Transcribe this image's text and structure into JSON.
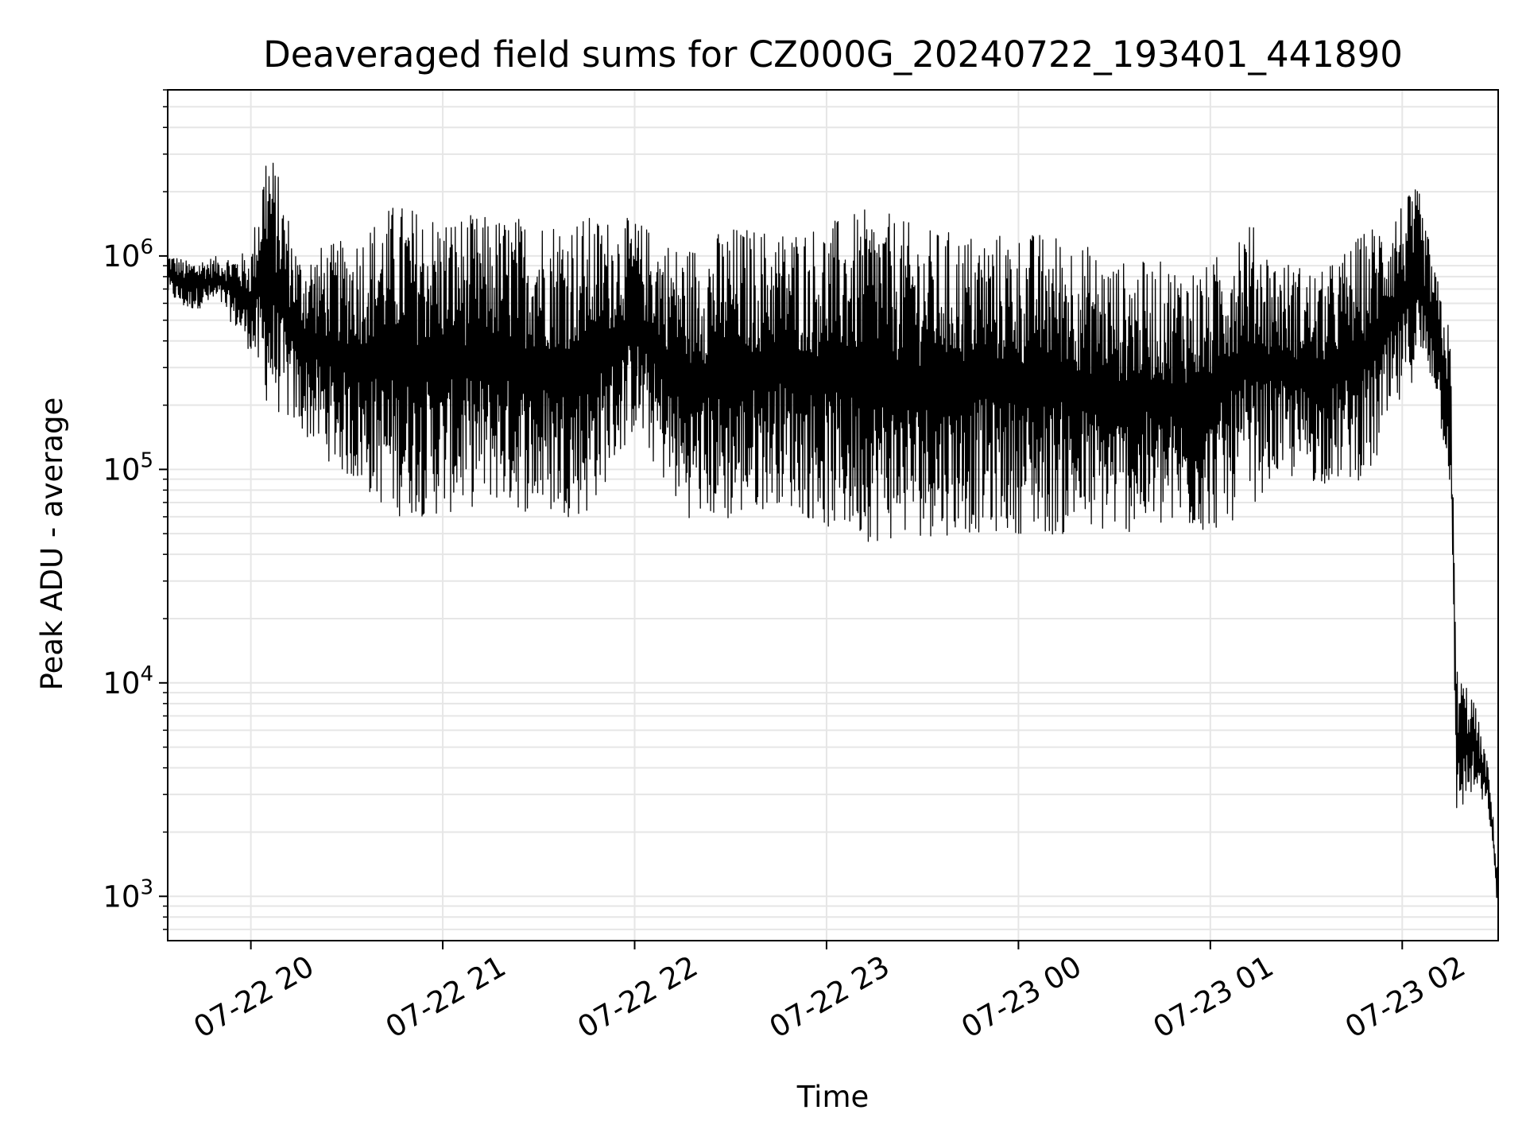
{
  "chart_data": {
    "type": "line",
    "title": "Deaveraged field sums for CZ000G_20240722_193401_441890",
    "xlabel": "Time",
    "ylabel": "Peak ADU - average",
    "yscale": "log",
    "grid": true,
    "line_color": "#000000",
    "grid_color": "#e6e6e6",
    "xlim": [
      "2024-07-22T19:34",
      "2024-07-23T02:30"
    ],
    "ylim": [
      620,
      6000000
    ],
    "xticks": [
      {
        "value": "2024-07-22T20:00",
        "label": "07-22 20"
      },
      {
        "value": "2024-07-22T21:00",
        "label": "07-22 21"
      },
      {
        "value": "2024-07-22T22:00",
        "label": "07-22 22"
      },
      {
        "value": "2024-07-22T23:00",
        "label": "07-22 23"
      },
      {
        "value": "2024-07-23T00:00",
        "label": "07-23 00"
      },
      {
        "value": "2024-07-23T01:00",
        "label": "07-23 01"
      },
      {
        "value": "2024-07-23T02:00",
        "label": "07-23 02"
      }
    ],
    "yticks": [
      {
        "value": 1000,
        "base": "10",
        "exp": "3"
      },
      {
        "value": 10000,
        "base": "10",
        "exp": "4"
      },
      {
        "value": 100000,
        "base": "10",
        "exp": "5"
      },
      {
        "value": 1000000,
        "base": "10",
        "exp": "6"
      }
    ],
    "series": [
      {
        "upper_envelope": [
          [
            "2024-07-22T19:34",
            1050000
          ],
          [
            "2024-07-22T19:40",
            950000
          ],
          [
            "2024-07-22T19:50",
            1000000
          ],
          [
            "2024-07-22T20:00",
            1050000
          ],
          [
            "2024-07-22T20:05",
            3800000
          ],
          [
            "2024-07-22T20:15",
            1050000
          ],
          [
            "2024-07-22T20:30",
            1200000
          ],
          [
            "2024-07-22T20:45",
            1800000
          ],
          [
            "2024-07-22T21:00",
            1600000
          ],
          [
            "2024-07-22T21:15",
            1550000
          ],
          [
            "2024-07-22T21:30",
            1550000
          ],
          [
            "2024-07-22T21:45",
            1550000
          ],
          [
            "2024-07-22T22:00",
            1500000
          ],
          [
            "2024-07-22T22:15",
            1100000
          ],
          [
            "2024-07-22T22:30",
            1400000
          ],
          [
            "2024-07-22T22:45",
            1350000
          ],
          [
            "2024-07-22T23:00",
            1450000
          ],
          [
            "2024-07-22T23:15",
            1700000
          ],
          [
            "2024-07-22T23:30",
            1350000
          ],
          [
            "2024-07-22T23:45",
            1300000
          ],
          [
            "2024-07-23T00:00",
            1300000
          ],
          [
            "2024-07-23T00:15",
            1300000
          ],
          [
            "2024-07-23T00:30",
            950000
          ],
          [
            "2024-07-23T00:45",
            950000
          ],
          [
            "2024-07-23T01:00",
            900000
          ],
          [
            "2024-07-23T01:10",
            1650000
          ],
          [
            "2024-07-23T01:20",
            1000000
          ],
          [
            "2024-07-23T01:35",
            850000
          ],
          [
            "2024-07-23T01:50",
            1400000
          ],
          [
            "2024-07-23T02:05",
            2100000
          ],
          [
            "2024-07-23T02:10",
            900000
          ],
          [
            "2024-07-23T02:15",
            450000
          ],
          [
            "2024-07-23T02:17",
            12000
          ],
          [
            "2024-07-23T02:22",
            9000
          ],
          [
            "2024-07-23T02:27",
            4000
          ],
          [
            "2024-07-23T02:30",
            1300
          ]
        ],
        "lower_envelope": [
          [
            "2024-07-22T19:34",
            650000
          ],
          [
            "2024-07-22T19:40",
            550000
          ],
          [
            "2024-07-22T19:50",
            600000
          ],
          [
            "2024-07-22T20:00",
            350000
          ],
          [
            "2024-07-22T20:05",
            200000
          ],
          [
            "2024-07-22T20:15",
            150000
          ],
          [
            "2024-07-22T20:30",
            90000
          ],
          [
            "2024-07-22T20:45",
            60000
          ],
          [
            "2024-07-22T21:00",
            60000
          ],
          [
            "2024-07-22T21:15",
            70000
          ],
          [
            "2024-07-22T21:30",
            60000
          ],
          [
            "2024-07-22T21:45",
            60000
          ],
          [
            "2024-07-22T22:00",
            150000
          ],
          [
            "2024-07-22T22:15",
            60000
          ],
          [
            "2024-07-22T22:30",
            55000
          ],
          [
            "2024-07-22T22:45",
            70000
          ],
          [
            "2024-07-22T23:00",
            52000
          ],
          [
            "2024-07-22T23:15",
            45000
          ],
          [
            "2024-07-22T23:30",
            48000
          ],
          [
            "2024-07-22T23:45",
            50000
          ],
          [
            "2024-07-23T00:00",
            50000
          ],
          [
            "2024-07-23T00:15",
            48000
          ],
          [
            "2024-07-23T00:30",
            50000
          ],
          [
            "2024-07-23T00:45",
            50000
          ],
          [
            "2024-07-23T01:00",
            50000
          ],
          [
            "2024-07-23T01:10",
            60000
          ],
          [
            "2024-07-23T01:20",
            90000
          ],
          [
            "2024-07-23T01:35",
            85000
          ],
          [
            "2024-07-23T01:50",
            90000
          ],
          [
            "2024-07-23T02:05",
            300000
          ],
          [
            "2024-07-23T02:10",
            250000
          ],
          [
            "2024-07-23T02:15",
            80000
          ],
          [
            "2024-07-23T02:17",
            2300
          ],
          [
            "2024-07-23T02:22",
            3000
          ],
          [
            "2024-07-23T02:27",
            2500
          ],
          [
            "2024-07-23T02:30",
            800
          ]
        ]
      }
    ]
  }
}
